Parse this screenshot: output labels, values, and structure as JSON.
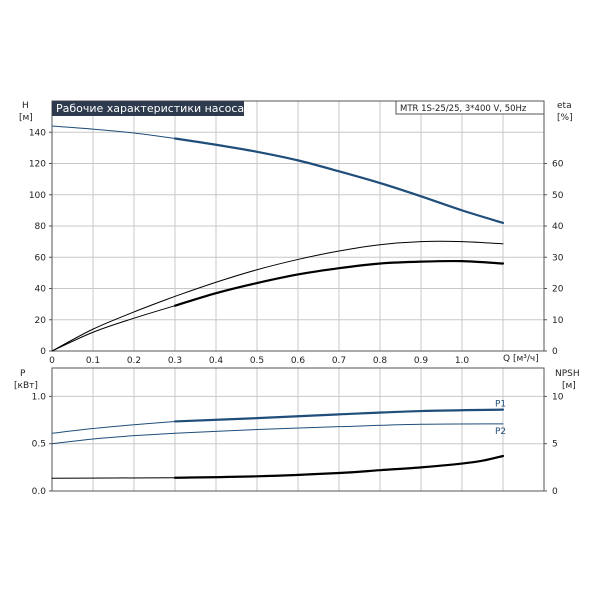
{
  "title": "Рабочие характеристики насоса",
  "model": "MTR 1S-25/25, 3*400 V, 50Hz",
  "colors": {
    "head": "#1f4e7a",
    "power": "#1f4e7a",
    "eta": "#000000",
    "title_bg": "#2e3b4e"
  },
  "chart_data": [
    {
      "type": "line",
      "name": "head-efficiency",
      "xlabel": "Q [м³/ч]",
      "ylabel_left": [
        "H",
        "[м]"
      ],
      "ylabel_right": [
        "eta",
        "[%]"
      ],
      "xlim": [
        0,
        1.2
      ],
      "ylim_left": [
        0,
        160
      ],
      "ylim_right": [
        0,
        80
      ],
      "x_ticks": [
        "0",
        "0.1",
        "0.2",
        "0.3",
        "0.4",
        "0.5",
        "0.6",
        "0.7",
        "0.8",
        "0.9",
        "1.0"
      ],
      "y_ticks_left": [
        "0",
        "20",
        "40",
        "60",
        "80",
        "100",
        "120",
        "140"
      ],
      "y_ticks_right": [
        "0",
        "10",
        "20",
        "30",
        "40",
        "50",
        "60"
      ],
      "grid": true,
      "series": [
        {
          "axis": "left",
          "color": "#1f4e7a",
          "x": [
            0,
            0.1,
            0.2,
            0.3
          ],
          "y": [
            144,
            142,
            139.5,
            136
          ],
          "style": "thin"
        },
        {
          "axis": "left",
          "color": "#1f4e7a",
          "x": [
            0.3,
            0.4,
            0.5,
            0.6,
            0.7,
            0.8,
            0.9,
            1.0,
            1.1
          ],
          "y": [
            136,
            132,
            127.5,
            122,
            115,
            107.5,
            99,
            90,
            82
          ],
          "style": "bold"
        },
        {
          "axis": "right",
          "color": "#000000",
          "x": [
            0,
            0.1,
            0.2,
            0.3
          ],
          "y": [
            0,
            7,
            12.5,
            17.5
          ],
          "style": "thin"
        },
        {
          "axis": "right",
          "color": "#000000",
          "x": [
            0.3,
            0.4,
            0.5,
            0.6,
            0.7,
            0.8,
            0.9,
            1.0,
            1.1
          ],
          "y": [
            17.5,
            22,
            26,
            29.3,
            32,
            34,
            35,
            35,
            34.3
          ],
          "style": "thin"
        },
        {
          "axis": "left",
          "color": "#000000",
          "x": [
            0,
            0.1,
            0.2,
            0.3
          ],
          "y": [
            0,
            12,
            21,
            29
          ],
          "style": "thin"
        },
        {
          "axis": "left",
          "color": "#000000",
          "x": [
            0.3,
            0.4,
            0.5,
            0.6,
            0.7,
            0.8,
            0.9,
            1.0,
            1.1
          ],
          "y": [
            29,
            37,
            43.5,
            49,
            53,
            56,
            57.2,
            57.5,
            56
          ],
          "style": "bold"
        }
      ]
    },
    {
      "type": "line",
      "name": "power-npsh",
      "ylabel_left": [
        "P",
        "[кВт]"
      ],
      "ylabel_right": [
        "NPSH",
        "[м]"
      ],
      "xlim": [
        0,
        1.2
      ],
      "ylim_left": [
        0,
        1.3
      ],
      "ylim_right": [
        0,
        13
      ],
      "y_ticks_left": [
        "0.0",
        "0.5",
        "1.0"
      ],
      "y_ticks_right": [
        "0",
        "5",
        "10"
      ],
      "grid": true,
      "series": [
        {
          "name": "P1",
          "axis": "left",
          "color": "#1f4e7a",
          "x": [
            0,
            0.1,
            0.2,
            0.3
          ],
          "y": [
            0.61,
            0.66,
            0.7,
            0.735
          ],
          "style": "thin"
        },
        {
          "name": "P1",
          "axis": "left",
          "color": "#1f4e7a",
          "x": [
            0.3,
            0.5,
            0.7,
            0.9,
            1.1
          ],
          "y": [
            0.735,
            0.77,
            0.81,
            0.845,
            0.86
          ],
          "style": "bold",
          "label": "P1"
        },
        {
          "name": "P2",
          "axis": "left",
          "color": "#1f4e7a",
          "x": [
            0,
            0.1,
            0.2,
            0.3
          ],
          "y": [
            0.5,
            0.55,
            0.585,
            0.61
          ],
          "style": "thin"
        },
        {
          "name": "P2",
          "axis": "left",
          "color": "#1f4e7a",
          "x": [
            0.3,
            0.5,
            0.7,
            0.9,
            1.1
          ],
          "y": [
            0.61,
            0.65,
            0.68,
            0.705,
            0.71
          ],
          "style": "thin",
          "label": "P2"
        },
        {
          "axis": "right",
          "color": "#000000",
          "x": [
            0,
            0.3
          ],
          "y": [
            1.35,
            1.4
          ],
          "style": "thin"
        },
        {
          "axis": "right",
          "color": "#000000",
          "x": [
            0.3,
            0.5,
            0.7,
            0.8,
            0.9,
            1.0,
            1.05,
            1.1
          ],
          "y": [
            1.4,
            1.55,
            1.9,
            2.2,
            2.5,
            2.9,
            3.2,
            3.7
          ],
          "style": "bold"
        }
      ]
    }
  ]
}
